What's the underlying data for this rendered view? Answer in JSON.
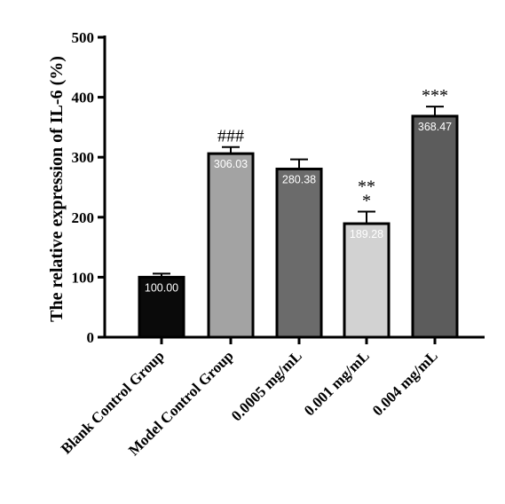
{
  "chart_data": {
    "type": "bar",
    "title": "",
    "xlabel": "",
    "ylabel": "The relative expression of IL-6 (%)",
    "ylim": [
      0,
      500
    ],
    "yticks": [
      0,
      100,
      200,
      300,
      400,
      500
    ],
    "grid": false,
    "categories": [
      "Blank Control Group",
      "Model Control Group",
      "0.0005 mg/mL",
      "0.001 mg/mL",
      "0.004 mg/mL"
    ],
    "values": [
      100.0,
      306.03,
      280.38,
      189.28,
      368.47
    ],
    "errors": [
      6,
      11,
      16,
      20,
      16
    ],
    "data_labels": [
      "100.00",
      "306.03",
      "280.38",
      "189.28",
      "368.47"
    ],
    "significance": [
      "",
      "###",
      "",
      "**\n*",
      "***"
    ],
    "bar_colors": [
      "#0a0a0a",
      "#a3a3a3",
      "#6b6b6b",
      "#d2d2d2",
      "#5c5c5c"
    ]
  }
}
